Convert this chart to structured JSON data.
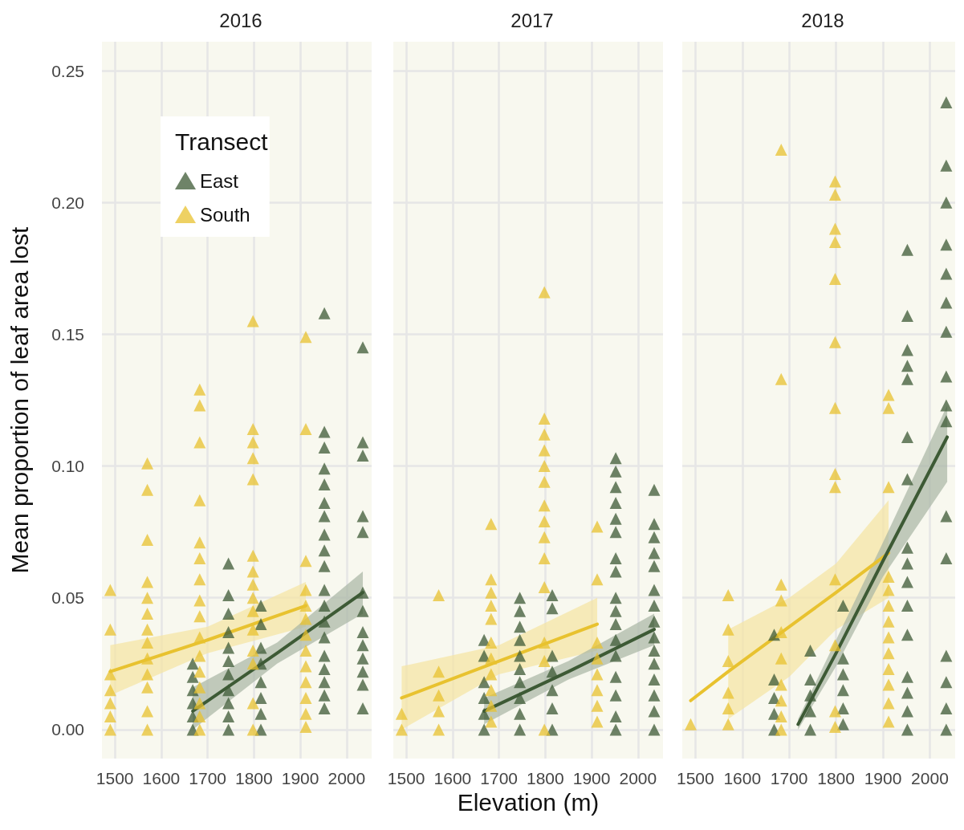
{
  "chart_data": [
    {
      "type": "scatter",
      "title": "2016",
      "ylabel": "Mean proportion of leaf area lost",
      "legend": "top left",
      "legend_title": "Transect",
      "marker": "triangle",
      "grid": true,
      "xlim": [
        1472,
        2054
      ],
      "xticks": [
        1500,
        1600,
        1700,
        1800,
        1900,
        2000
      ],
      "ylim": [
        -0.011,
        0.261
      ],
      "yticks": [
        {
          "value": 0,
          "label": "0.00"
        },
        {
          "value": 0.05,
          "label": "0.05"
        },
        {
          "value": 0.1,
          "label": "0.10"
        },
        {
          "value": 0.15,
          "label": "0.15"
        },
        {
          "value": 0.2,
          "label": "0.20"
        },
        {
          "value": 0.25,
          "label": "0.25"
        }
      ],
      "series": [
        {
          "name": "East",
          "color": "#3d5a35",
          "x": [
            1668,
            1668,
            1668,
            1668,
            1668,
            1668,
            1745,
            1745,
            1745,
            1745,
            1745,
            1745,
            1745,
            1745,
            1745,
            1745,
            1745,
            1815,
            1815,
            1815,
            1815,
            1815,
            1815,
            1815,
            1815,
            1952,
            1952,
            1952,
            1952,
            1952,
            1952,
            1952,
            1952,
            1952,
            1952,
            1952,
            1952,
            1952,
            1952,
            1952,
            1952,
            1952,
            1952,
            1952,
            2035,
            2035,
            2035,
            2035,
            2035,
            2035,
            2035,
            2035,
            2035,
            2035,
            2035,
            2035,
            2035
          ],
          "values": [
            0.025,
            0.02,
            0.015,
            0.01,
            0.005,
            0,
            0.063,
            0.051,
            0.044,
            0.037,
            0.031,
            0.026,
            0.021,
            0.015,
            0.01,
            0.005,
            0,
            0.047,
            0.04,
            0.031,
            0.025,
            0.018,
            0.012,
            0.006,
            0,
            0.158,
            0.113,
            0.107,
            0.099,
            0.093,
            0.086,
            0.081,
            0.074,
            0.068,
            0.062,
            0.053,
            0.047,
            0.041,
            0.035,
            0.028,
            0.023,
            0.018,
            0.013,
            0.008,
            0.145,
            0.109,
            0.104,
            0.081,
            0.075,
            0.052,
            0.045,
            0.037,
            0.032,
            0.027,
            0.022,
            0.017,
            0.008
          ]
        },
        {
          "name": "South",
          "color": "#e8c22f",
          "x": [
            1490,
            1490,
            1490,
            1490,
            1490,
            1490,
            1490,
            1570,
            1570,
            1570,
            1570,
            1570,
            1570,
            1570,
            1570,
            1570,
            1570,
            1570,
            1570,
            1570,
            1683,
            1683,
            1683,
            1683,
            1683,
            1683,
            1683,
            1683,
            1683,
            1683,
            1683,
            1683,
            1683,
            1683,
            1683,
            1683,
            1798,
            1798,
            1798,
            1798,
            1798,
            1798,
            1798,
            1798,
            1798,
            1798,
            1798,
            1798,
            1798,
            1798,
            1798,
            1912,
            1912,
            1912,
            1912,
            1912,
            1912,
            1912,
            1912,
            1912,
            1912,
            1912,
            1912,
            1912
          ],
          "values": [
            0.053,
            0.038,
            0.021,
            0.015,
            0.01,
            0.005,
            0,
            0.101,
            0.091,
            0.072,
            0.056,
            0.05,
            0.044,
            0.038,
            0.033,
            0.027,
            0.021,
            0.016,
            0.007,
            0,
            0.129,
            0.123,
            0.109,
            0.087,
            0.071,
            0.065,
            0.057,
            0.049,
            0.043,
            0.035,
            0.028,
            0.022,
            0.016,
            0.01,
            0.005,
            0,
            0.155,
            0.114,
            0.109,
            0.103,
            0.095,
            0.066,
            0.06,
            0.055,
            0.05,
            0.045,
            0.038,
            0.03,
            0.025,
            0.01,
            0,
            0.149,
            0.114,
            0.064,
            0.053,
            0.047,
            0.042,
            0.036,
            0.03,
            0.024,
            0.018,
            0.012,
            0.006,
            0.001
          ]
        },
        {
          "type": "line",
          "marker": "none",
          "color": "#e8c22f",
          "x": [
            1490,
            1700,
            1912
          ],
          "values": [
            0.022,
            0.034,
            0.047
          ],
          "lower": [
            0.013,
            0.029,
            0.039
          ],
          "upper": [
            0.032,
            0.039,
            0.056
          ]
        },
        {
          "type": "line",
          "marker": "none",
          "color": "#3d5a35",
          "x": [
            1668,
            1850,
            2035
          ],
          "values": [
            0.007,
            0.029,
            0.052
          ],
          "lower": [
            0.0,
            0.025,
            0.044
          ],
          "upper": [
            0.016,
            0.033,
            0.06
          ]
        }
      ]
    },
    {
      "type": "scatter",
      "title": "2017",
      "xlabel": "Elevation (m)",
      "tick_labels": "x",
      "marker": "triangle",
      "grid": true,
      "xlim": [
        1472,
        2054
      ],
      "xticks": [
        1500,
        1600,
        1700,
        1800,
        1900,
        2000
      ],
      "ylim": [
        -0.011,
        0.261
      ],
      "yticks": [
        0,
        0.05,
        0.1,
        0.15,
        0.2,
        0.25
      ],
      "series": [
        {
          "color": "#3d5a35",
          "x": [
            1668,
            1668,
            1668,
            1668,
            1668,
            1668,
            1745,
            1745,
            1745,
            1745,
            1745,
            1745,
            1745,
            1745,
            1745,
            1745,
            1815,
            1815,
            1815,
            1815,
            1815,
            1815,
            1815,
            1952,
            1952,
            1952,
            1952,
            1952,
            1952,
            1952,
            1952,
            1952,
            1952,
            1952,
            1952,
            1952,
            1952,
            1952,
            1952,
            1952,
            2035,
            2035,
            2035,
            2035,
            2035,
            2035,
            2035,
            2035,
            2035,
            2035,
            2035,
            2035,
            2035,
            2035,
            2035
          ],
          "values": [
            0.034,
            0.028,
            0.018,
            0.012,
            0.006,
            0,
            0.05,
            0.045,
            0.039,
            0.034,
            0.028,
            0.023,
            0.018,
            0.012,
            0.006,
            0,
            0.051,
            0.046,
            0.028,
            0.022,
            0.015,
            0.008,
            0,
            0.103,
            0.098,
            0.092,
            0.086,
            0.08,
            0.075,
            0.065,
            0.06,
            0.05,
            0.045,
            0.04,
            0.034,
            0.028,
            0.02,
            0.013,
            0.005,
            0,
            0.091,
            0.078,
            0.073,
            0.067,
            0.062,
            0.053,
            0.047,
            0.041,
            0.035,
            0.03,
            0.025,
            0.019,
            0.013,
            0.007,
            0
          ]
        },
        {
          "color": "#e8c22f",
          "x": [
            1490,
            1490,
            1570,
            1570,
            1570,
            1570,
            1570,
            1683,
            1683,
            1683,
            1683,
            1683,
            1683,
            1683,
            1683,
            1683,
            1683,
            1683,
            1798,
            1798,
            1798,
            1798,
            1798,
            1798,
            1798,
            1798,
            1798,
            1798,
            1798,
            1798,
            1798,
            1798,
            1912,
            1912,
            1912,
            1912,
            1912,
            1912,
            1912,
            1912
          ],
          "values": [
            0.006,
            0,
            0.051,
            0.022,
            0.013,
            0.007,
            0,
            0.078,
            0.057,
            0.052,
            0.047,
            0.042,
            0.033,
            0.027,
            0.021,
            0.015,
            0.009,
            0.003,
            0.166,
            0.118,
            0.112,
            0.106,
            0.1,
            0.094,
            0.085,
            0.079,
            0.073,
            0.065,
            0.054,
            0.033,
            0.026,
            0,
            0.077,
            0.057,
            0.033,
            0.027,
            0.021,
            0.015,
            0.009,
            0.003
          ]
        },
        {
          "type": "line",
          "marker": "none",
          "color": "#e8c22f",
          "x": [
            1490,
            1700,
            1912
          ],
          "values": [
            0.012,
            0.026,
            0.04
          ],
          "lower": [
            0.0,
            0.021,
            0.03
          ],
          "upper": [
            0.024,
            0.032,
            0.05
          ]
        },
        {
          "type": "line",
          "marker": "none",
          "color": "#3d5a35",
          "x": [
            1668,
            1850,
            2035
          ],
          "values": [
            0.007,
            0.022,
            0.038
          ],
          "lower": [
            0.002,
            0.019,
            0.032
          ],
          "upper": [
            0.012,
            0.026,
            0.044
          ]
        }
      ]
    },
    {
      "type": "scatter",
      "title": "2018",
      "tick_labels": "x",
      "marker": "triangle",
      "grid": true,
      "xlim": [
        1472,
        2054
      ],
      "xticks": [
        1500,
        1600,
        1700,
        1800,
        1900,
        2000
      ],
      "ylim": [
        -0.011,
        0.261
      ],
      "yticks": [
        0,
        0.05,
        0.1,
        0.15,
        0.2,
        0.25
      ],
      "series": [
        {
          "color": "#3d5a35",
          "x": [
            1668,
            1668,
            1668,
            1668,
            1668,
            1745,
            1745,
            1745,
            1745,
            1745,
            1815,
            1815,
            1815,
            1815,
            1815,
            1815,
            1952,
            1952,
            1952,
            1952,
            1952,
            1952,
            1952,
            1952,
            1952,
            1952,
            1952,
            1952,
            1952,
            1952,
            1952,
            1952,
            2035,
            2035,
            2035,
            2035,
            2035,
            2035,
            2035,
            2035,
            2035,
            2035,
            2035,
            2035,
            2035,
            2035,
            2035,
            2035
          ],
          "values": [
            0.036,
            0.019,
            0.012,
            0.006,
            0,
            0.03,
            0.019,
            0.013,
            0.007,
            0,
            0.047,
            0.027,
            0.021,
            0.015,
            0.008,
            0.002,
            0.182,
            0.157,
            0.144,
            0.138,
            0.133,
            0.111,
            0.095,
            0.069,
            0.063,
            0.056,
            0.047,
            0.036,
            0.02,
            0.014,
            0.007,
            0,
            0.238,
            0.214,
            0.2,
            0.184,
            0.173,
            0.162,
            0.151,
            0.134,
            0.123,
            0.117,
            0.081,
            0.065,
            0.028,
            0.018,
            0.008,
            0
          ]
        },
        {
          "color": "#e8c22f",
          "x": [
            1490,
            1570,
            1570,
            1570,
            1570,
            1570,
            1570,
            1683,
            1683,
            1683,
            1683,
            1683,
            1683,
            1683,
            1683,
            1683,
            1683,
            1798,
            1798,
            1798,
            1798,
            1798,
            1798,
            1798,
            1798,
            1798,
            1798,
            1798,
            1798,
            1798,
            1912,
            1912,
            1912,
            1912,
            1912,
            1912,
            1912,
            1912,
            1912,
            1912,
            1912,
            1912,
            1912
          ],
          "values": [
            0.002,
            0.051,
            0.038,
            0.026,
            0.014,
            0.008,
            0.002,
            0.22,
            0.133,
            0.055,
            0.049,
            0.037,
            0.027,
            0.017,
            0.011,
            0.005,
            0,
            0.208,
            0.203,
            0.19,
            0.185,
            0.171,
            0.147,
            0.122,
            0.097,
            0.092,
            0.057,
            0.032,
            0.007,
            0.001,
            0.127,
            0.122,
            0.092,
            0.058,
            0.053,
            0.047,
            0.041,
            0.035,
            0.029,
            0.023,
            0.017,
            0.01,
            0.003
          ]
        },
        {
          "type": "line",
          "marker": "none",
          "color": "#e8c22f",
          "x": [
            1490,
            1570,
            1700,
            1800,
            1912
          ],
          "values": [
            0.011,
            0.022,
            0.039,
            0.052,
            0.067
          ],
          "lower": [
            null,
            0.004,
            0.02,
            0.038,
            0.05
          ],
          "upper": [
            null,
            0.038,
            0.05,
            0.063,
            0.087
          ]
        },
        {
          "type": "line",
          "marker": "none",
          "color": "#3d5a35",
          "x": [
            1719,
            1800,
            1900,
            2037
          ],
          "values": [
            0.002,
            0.029,
            0.064,
            0.111
          ],
          "lower": [
            0.0,
            0.024,
            0.058,
            0.094
          ],
          "upper": [
            0.004,
            0.034,
            0.071,
            0.123
          ]
        }
      ]
    }
  ]
}
